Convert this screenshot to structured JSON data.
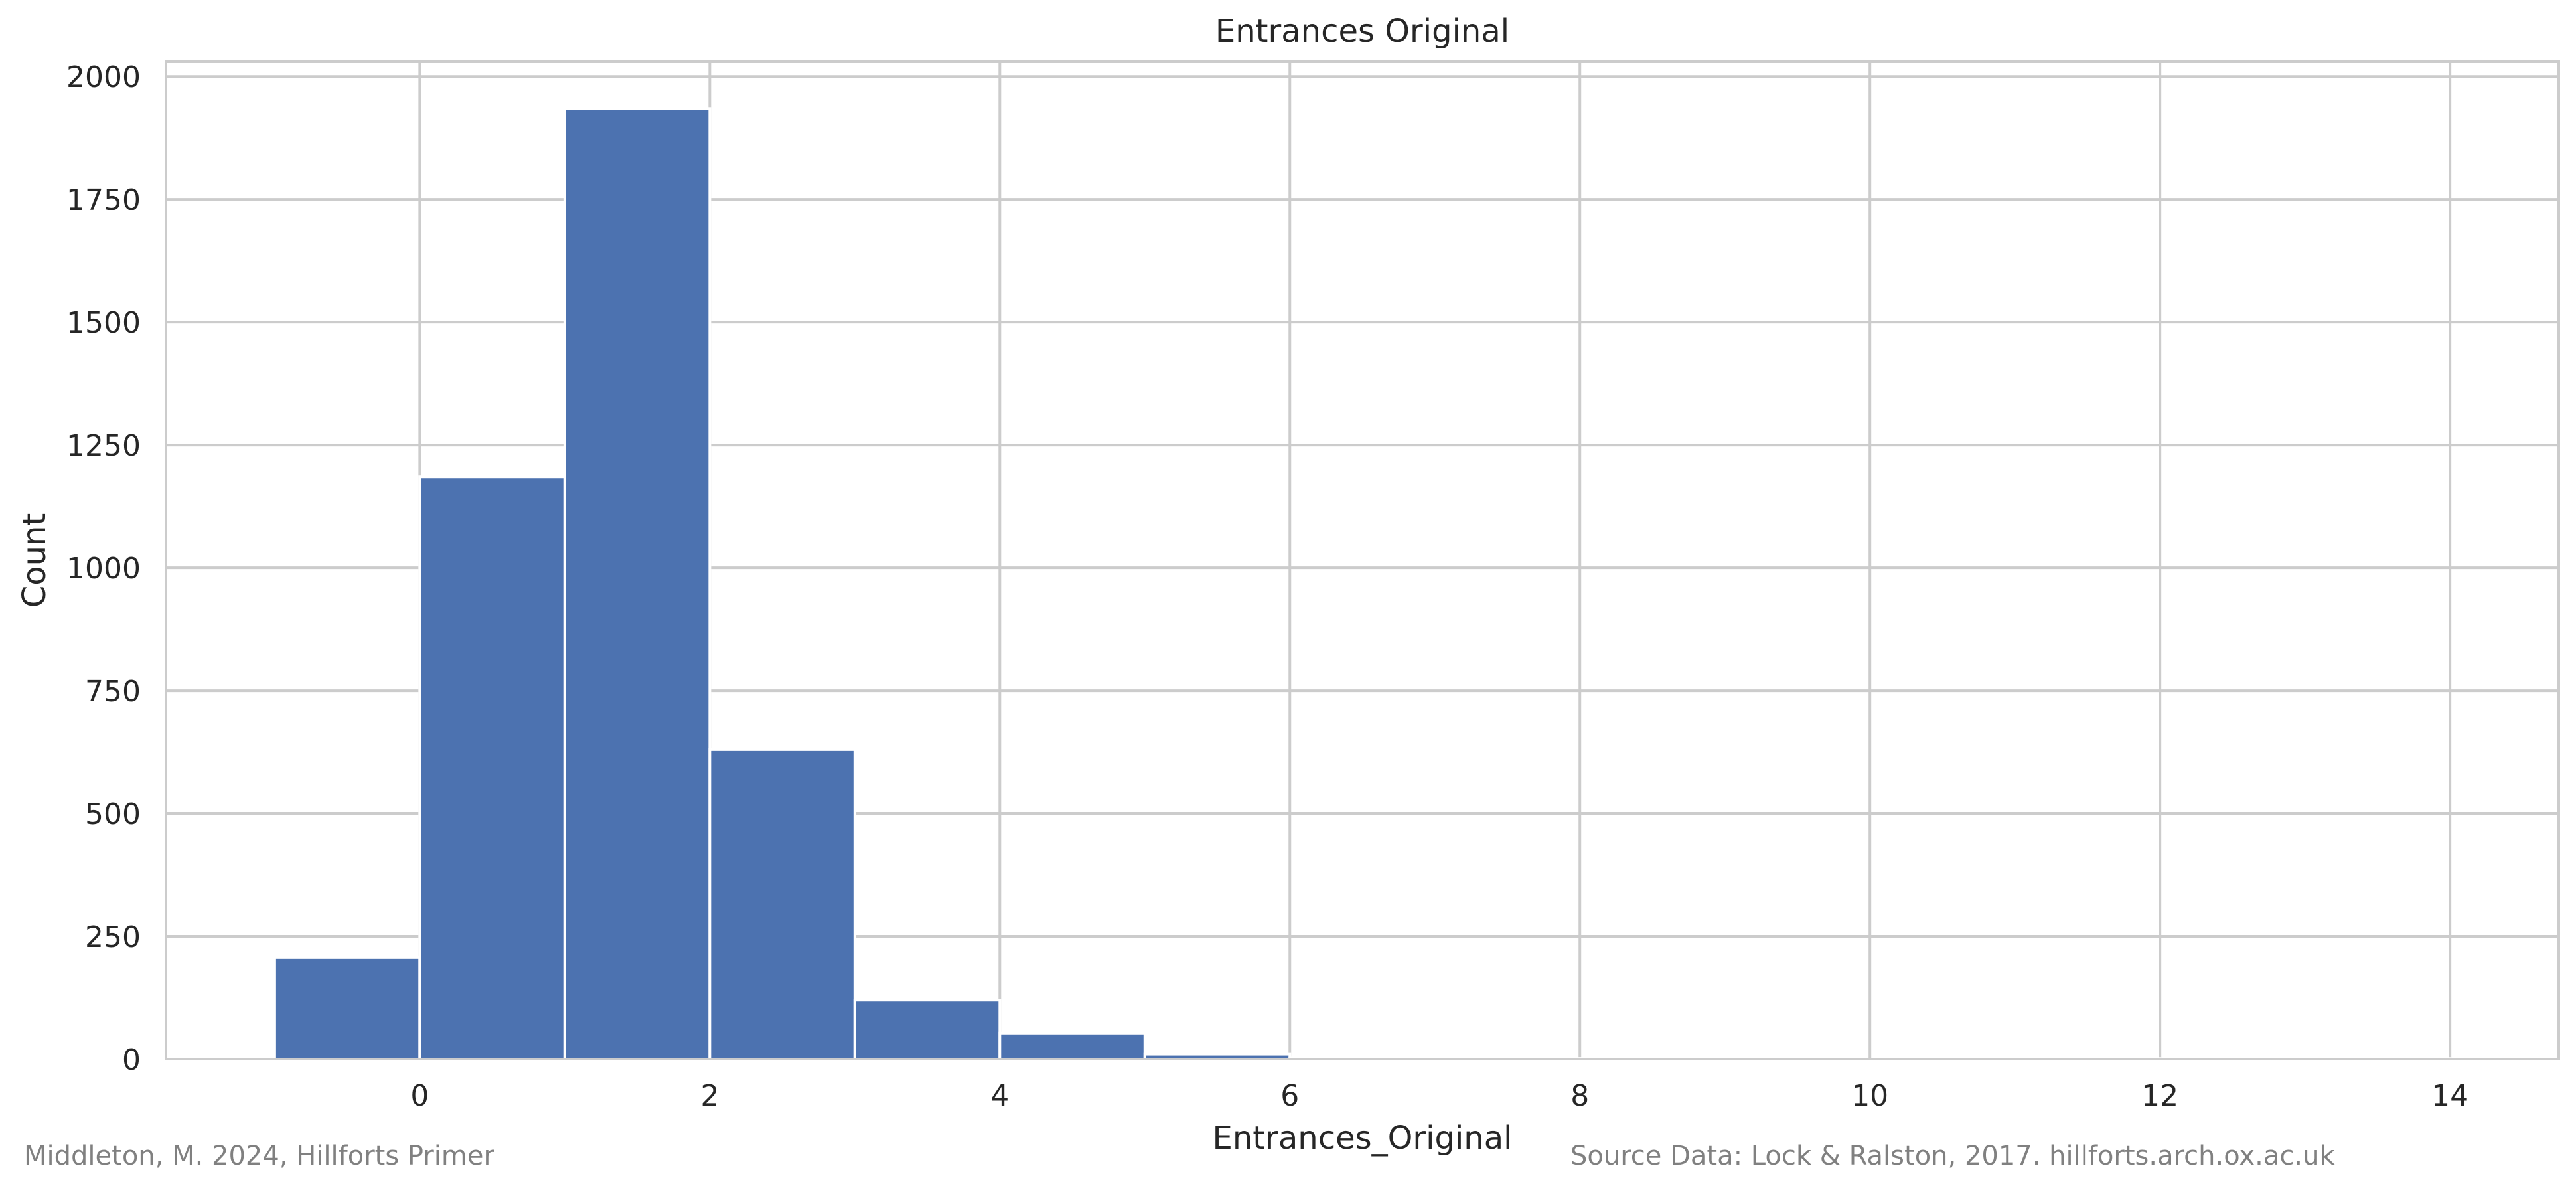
{
  "chart_data": {
    "type": "bar",
    "title": "Entrances Original",
    "xlabel": "Entrances_Original",
    "ylabel": "Count",
    "bins": [
      {
        "start": -1,
        "end": 0,
        "value": 207
      },
      {
        "start": 0,
        "end": 1,
        "value": 1185
      },
      {
        "start": 1,
        "end": 2,
        "value": 1935
      },
      {
        "start": 2,
        "end": 3,
        "value": 630
      },
      {
        "start": 3,
        "end": 4,
        "value": 120
      },
      {
        "start": 4,
        "end": 5,
        "value": 53
      },
      {
        "start": 5,
        "end": 6,
        "value": 10
      },
      {
        "start": 6,
        "end": 7,
        "value": 2
      },
      {
        "start": 7,
        "end": 8,
        "value": 1
      },
      {
        "start": 8,
        "end": 9,
        "value": 1
      },
      {
        "start": 9,
        "end": 10,
        "value": 0
      },
      {
        "start": 10,
        "end": 11,
        "value": 0
      },
      {
        "start": 11,
        "end": 12,
        "value": 1
      },
      {
        "start": 12,
        "end": 13,
        "value": 0
      },
      {
        "start": 13,
        "end": 14,
        "value": 1
      }
    ],
    "xlim": [
      -1.75,
      14.75
    ],
    "ylim": [
      0,
      2030
    ],
    "xticks": [
      0,
      2,
      4,
      6,
      8,
      10,
      12,
      14
    ],
    "yticks": [
      0,
      250,
      500,
      750,
      1000,
      1250,
      1500,
      1750,
      2000
    ],
    "ytick_labels": [
      "0",
      "250",
      "500",
      "750",
      "1000",
      "1250",
      "1500",
      "1750",
      "2000"
    ],
    "grid": true,
    "bar_color": "#4c72b0",
    "grid_color": "#cccccc",
    "text_color": "#262626"
  },
  "captions": {
    "left": "Middleton, M. 2024, Hillforts Primer",
    "right": "Source Data: Lock & Ralston, 2017. hillforts.arch.ox.ac.uk"
  }
}
